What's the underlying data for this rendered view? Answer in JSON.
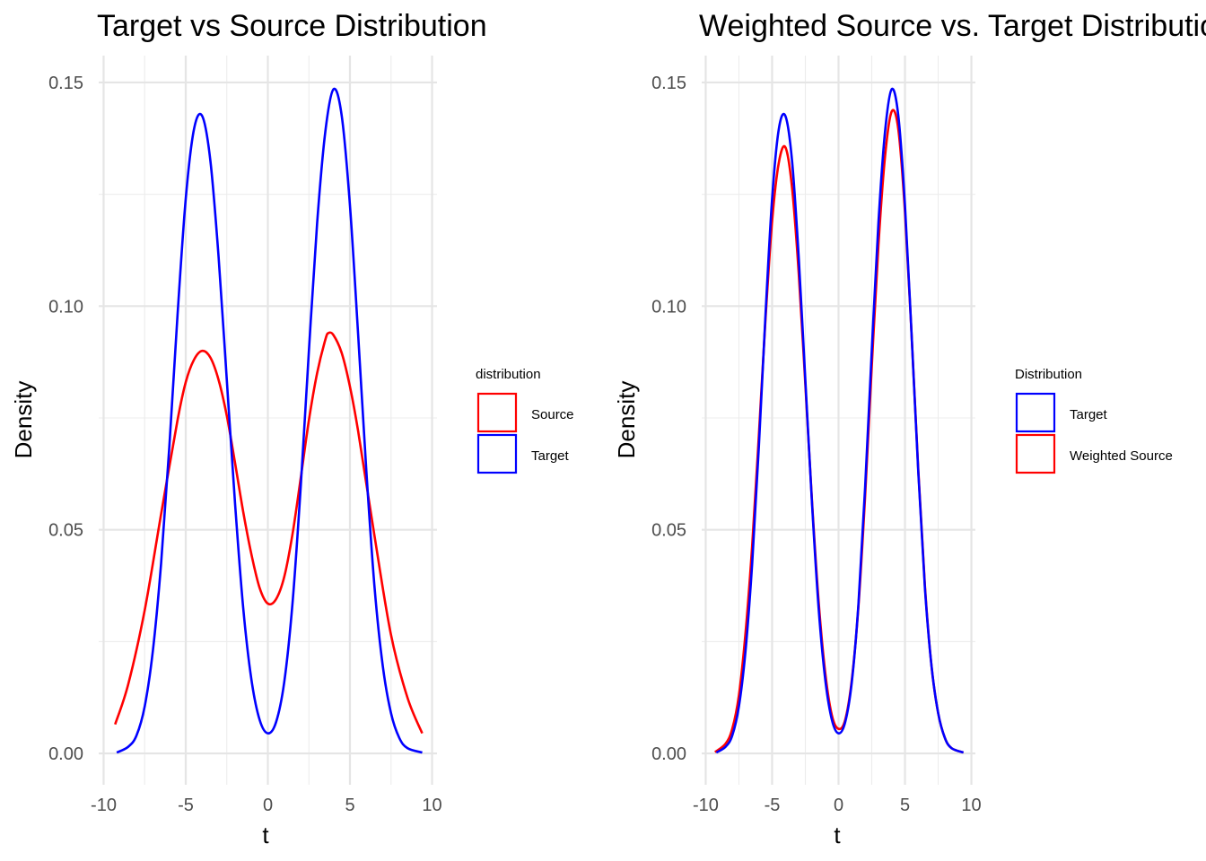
{
  "chart_data": [
    {
      "type": "line",
      "title": "Target vs Source Distribution",
      "xlabel": "t",
      "ylabel": "Density",
      "xlim": [
        -10.3,
        10.3
      ],
      "ylim": [
        -0.007,
        0.156
      ],
      "x_ticks": [
        -10,
        -5,
        0,
        5,
        10
      ],
      "y_ticks": [
        0.0,
        0.05,
        0.1,
        0.15
      ],
      "x_tick_labels": [
        "-10",
        "-5",
        "0",
        "5",
        "10"
      ],
      "y_tick_labels": [
        "0.00",
        "0.05",
        "0.10",
        "0.15"
      ],
      "grid": true,
      "legend": {
        "title": "distribution",
        "placement": "right",
        "entries": [
          "Source",
          "Target"
        ]
      },
      "series": [
        {
          "name": "Source",
          "color": "#ff0000",
          "x": [
            -9.3,
            -8.5,
            -7.5,
            -6.5,
            -5.5,
            -5.0,
            -4.5,
            -4.0,
            -3.5,
            -3.0,
            -2.5,
            -2.0,
            -1.5,
            -1.0,
            -0.5,
            0.0,
            0.5,
            1.0,
            1.5,
            2.0,
            2.5,
            3.0,
            3.5,
            3.7,
            4.0,
            4.5,
            5.0,
            5.5,
            6.5,
            7.5,
            8.5,
            9.4
          ],
          "y": [
            0.0065,
            0.0155,
            0.032,
            0.0535,
            0.0745,
            0.083,
            0.088,
            0.09,
            0.0885,
            0.0835,
            0.0755,
            0.065,
            0.054,
            0.0445,
            0.037,
            0.0335,
            0.0345,
            0.0395,
            0.049,
            0.0615,
            0.0745,
            0.085,
            0.0925,
            0.094,
            0.0935,
            0.0895,
            0.082,
            0.072,
            0.0485,
            0.0265,
            0.0125,
            0.0045
          ]
        },
        {
          "name": "Target",
          "color": "#0000ff",
          "x": [
            -9.2,
            -8.5,
            -8.0,
            -7.5,
            -7.0,
            -6.5,
            -6.0,
            -5.5,
            -5.0,
            -4.5,
            -4.0,
            -3.5,
            -3.0,
            -2.5,
            -2.0,
            -1.5,
            -1.0,
            -0.5,
            0.0,
            0.5,
            1.0,
            1.5,
            2.0,
            2.5,
            3.0,
            3.5,
            4.0,
            4.5,
            5.0,
            5.5,
            6.0,
            6.5,
            7.0,
            7.5,
            8.0,
            8.5,
            9.4
          ],
          "y": [
            0.0002,
            0.0015,
            0.004,
            0.0105,
            0.023,
            0.0425,
            0.0685,
            0.098,
            0.124,
            0.1395,
            0.1425,
            0.1325,
            0.111,
            0.0835,
            0.056,
            0.0325,
            0.0165,
            0.0075,
            0.0045,
            0.007,
            0.016,
            0.0335,
            0.0595,
            0.09,
            0.1185,
            0.139,
            0.1485,
            0.1425,
            0.1225,
            0.0935,
            0.063,
            0.037,
            0.0195,
            0.009,
            0.0035,
            0.0012,
            0.0002
          ]
        }
      ]
    },
    {
      "type": "line",
      "title": "Weighted Source vs. Target Distribution",
      "xlabel": "t",
      "ylabel": "Density",
      "xlim": [
        -10.3,
        10.3
      ],
      "ylim": [
        -0.007,
        0.156
      ],
      "x_ticks": [
        -10,
        -5,
        0,
        5,
        10
      ],
      "y_ticks": [
        0.0,
        0.05,
        0.1,
        0.15
      ],
      "x_tick_labels": [
        "-10",
        "-5",
        "0",
        "5",
        "10"
      ],
      "y_tick_labels": [
        "0.00",
        "0.05",
        "0.10",
        "0.15"
      ],
      "grid": true,
      "legend": {
        "title": "Distribution",
        "placement": "right",
        "entries": [
          "Target",
          "Weighted Source"
        ]
      },
      "series": [
        {
          "name": "Weighted Source",
          "color": "#ff0000",
          "x": [
            -9.3,
            -8.5,
            -8.0,
            -7.5,
            -7.0,
            -6.5,
            -6.0,
            -5.5,
            -5.0,
            -4.5,
            -4.0,
            -3.5,
            -3.0,
            -2.5,
            -2.0,
            -1.5,
            -1.0,
            -0.5,
            0.0,
            0.5,
            1.0,
            1.5,
            2.0,
            2.5,
            3.0,
            3.5,
            4.0,
            4.5,
            5.0,
            5.5,
            6.0,
            6.5,
            7.0,
            7.5,
            8.0,
            8.5,
            9.4
          ],
          "y": [
            0.0003,
            0.0022,
            0.0055,
            0.013,
            0.027,
            0.0465,
            0.071,
            0.097,
            0.119,
            0.132,
            0.1355,
            0.1265,
            0.1075,
            0.0825,
            0.0565,
            0.034,
            0.018,
            0.0085,
            0.0055,
            0.0075,
            0.0165,
            0.033,
            0.0575,
            0.0865,
            0.1135,
            0.1335,
            0.1435,
            0.1395,
            0.121,
            0.0935,
            0.0635,
            0.0375,
            0.0195,
            0.009,
            0.0035,
            0.0012,
            0.0002
          ]
        },
        {
          "name": "Target",
          "color": "#0000ff",
          "x": [
            -9.2,
            -8.5,
            -8.0,
            -7.5,
            -7.0,
            -6.5,
            -6.0,
            -5.5,
            -5.0,
            -4.5,
            -4.0,
            -3.5,
            -3.0,
            -2.5,
            -2.0,
            -1.5,
            -1.0,
            -0.5,
            0.0,
            0.5,
            1.0,
            1.5,
            2.0,
            2.5,
            3.0,
            3.5,
            4.0,
            4.5,
            5.0,
            5.5,
            6.0,
            6.5,
            7.0,
            7.5,
            8.0,
            8.5,
            9.4
          ],
          "y": [
            0.0002,
            0.0015,
            0.004,
            0.0105,
            0.023,
            0.0425,
            0.0685,
            0.098,
            0.124,
            0.1395,
            0.1425,
            0.1325,
            0.111,
            0.0835,
            0.056,
            0.0325,
            0.0165,
            0.0075,
            0.0045,
            0.007,
            0.016,
            0.0335,
            0.0595,
            0.09,
            0.1185,
            0.139,
            0.1485,
            0.1425,
            0.1225,
            0.0935,
            0.063,
            0.037,
            0.0195,
            0.009,
            0.0035,
            0.0012,
            0.0002
          ]
        }
      ]
    }
  ]
}
